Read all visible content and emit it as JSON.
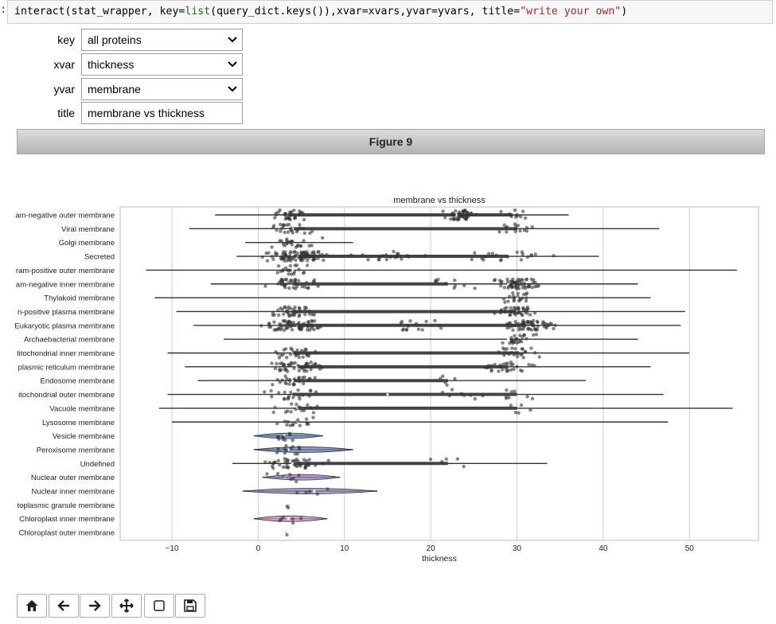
{
  "code_cell": {
    "prompt_marker": ":",
    "part1": "interact(stat_wrapper, key=",
    "keyword": "list",
    "part2": "(query_dict.keys()),xvar=xvars,yvar=yvars, title=",
    "string_literal": "\"write your own\"",
    "part3": ")"
  },
  "widgets": [
    {
      "label": "key",
      "value": "all proteins",
      "kind": "select"
    },
    {
      "label": "xvar",
      "value": "thickness",
      "kind": "select"
    },
    {
      "label": "yvar",
      "value": "membrane",
      "kind": "select"
    },
    {
      "label": "title",
      "value": "membrane vs thickness",
      "kind": "text"
    }
  ],
  "figure": {
    "header": "Figure 9"
  },
  "toolbar": [
    {
      "name": "home-button",
      "icon": "home-icon"
    },
    {
      "name": "back-button",
      "icon": "arrow-left-icon"
    },
    {
      "name": "forward-button",
      "icon": "arrow-right-icon"
    },
    {
      "name": "pan-button",
      "icon": "move-icon"
    },
    {
      "name": "zoom-rect-button",
      "icon": "square-icon"
    },
    {
      "name": "save-button",
      "icon": "floppy-disk-icon"
    }
  ],
  "chart_data": {
    "type": "violin",
    "title": "membrane vs thickness",
    "xlabel": "thickness",
    "ylabel": "",
    "xlim": [
      -16,
      58
    ],
    "xticks": [
      -10,
      0,
      10,
      20,
      30,
      40,
      50
    ],
    "grid": "vertical",
    "categories": [
      "am-negative outer membrane",
      "Viral membrane",
      "Golgi membrane",
      "Secreted",
      "ram-positive outer membrane",
      "am-negative inner membrane",
      "Thylakoid membrane",
      "n-positive plasma membrane",
      "Eukaryotic plasma membrane",
      "Archaebacterial membrane",
      "litochondrial inner membrane",
      "plasmic reticulum membrane",
      "Endosome membrane",
      "itochondrial outer membrane",
      "Vacuole membrane",
      "Lysosome membrane",
      "Vesicle membrane",
      "Peroxisome membrane",
      "Undefined",
      "Nuclear outer membrane",
      "Nuclear inner membrane",
      "toplasmic granule membrane",
      "Chloroplast inner membrane",
      "Chloroplast outer membrane"
    ],
    "ranges": [
      [
        -5,
        36
      ],
      [
        -8,
        46.5
      ],
      [
        -1.5,
        11
      ],
      [
        -2.5,
        39.5
      ],
      [
        -13,
        55.5
      ],
      [
        -5.5,
        44
      ],
      [
        -12,
        45.5
      ],
      [
        -9.5,
        49.5
      ],
      [
        -7.5,
        49
      ],
      [
        -4,
        44
      ],
      [
        -10.5,
        50
      ],
      [
        -8.5,
        45.5
      ],
      [
        -7,
        38
      ],
      [
        -10.5,
        47
      ],
      [
        -11.5,
        55
      ],
      [
        -10,
        47.5
      ],
      [
        -0.5,
        7.5
      ],
      [
        -0.5,
        11
      ],
      [
        -3,
        33.5
      ],
      [
        0.5,
        9.5
      ],
      [
        -1.8,
        13.8
      ],
      [
        3.3,
        3.6
      ],
      [
        -0.5,
        8
      ],
      [
        3.2,
        3.5
      ]
    ],
    "medians": [
      23,
      4,
      4,
      4.5,
      4,
      29,
      30,
      30,
      4.5,
      29,
      4,
      4.5,
      4,
      15,
      4.5,
      4.5,
      3,
      3.5,
      4,
      3,
      6.5,
      3.4,
      3.5,
      3.4
    ],
    "colored_violins": {
      "Vesicle membrane": "#5b84b1",
      "Peroxisome membrane": "#6d7fb8",
      "Nuclear outer membrane": "#9e7cc1",
      "Nuclear inner membrane": "#8f86b6",
      "Chloroplast inner membrane": "#d58ec1"
    }
  }
}
